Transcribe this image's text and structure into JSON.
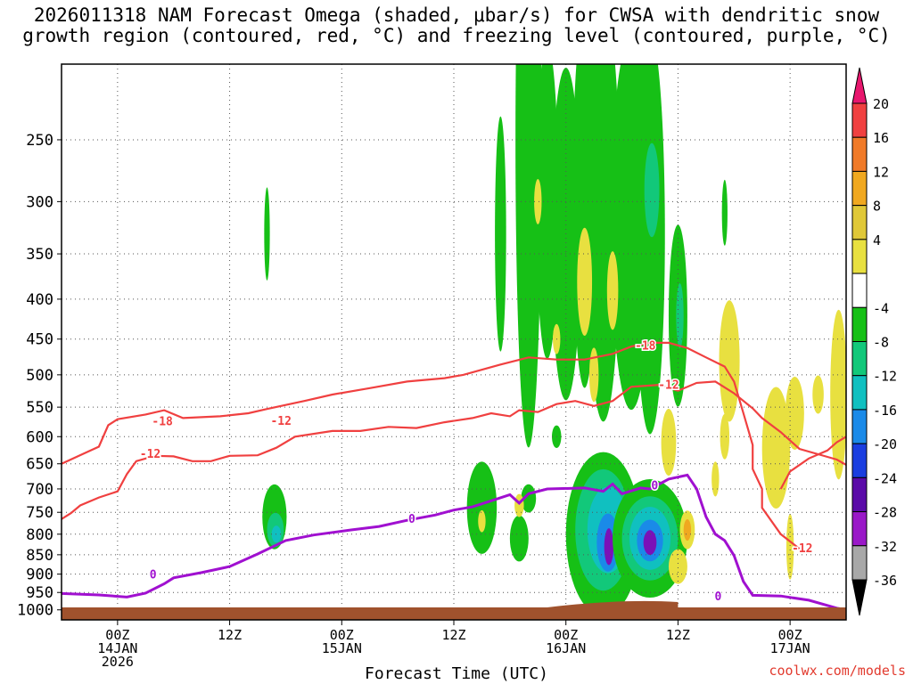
{
  "chart_data": {
    "type": "heatmap",
    "title": [
      "2026011318 NAM Forecast Omega (shaded, μbar/s) for CWSA with dendritic snow",
      "growth region (contoured, red, °C) and freezing level (contoured, purple, °C)"
    ],
    "xlabel": "Forecast Time (UTC)",
    "ylabel": "",
    "credit": "coolwx.com/models",
    "y_axis": {
      "unit": "hPa",
      "scale": "log-pressure",
      "ticks": [
        250,
        300,
        350,
        400,
        450,
        500,
        550,
        600,
        650,
        700,
        750,
        800,
        850,
        900,
        950,
        1000
      ],
      "range": [
        1030,
        200
      ]
    },
    "x_axis": {
      "unit": "hours since 2026-01-13 18Z",
      "range": [
        0,
        84
      ],
      "ticks": [
        {
          "h": 6,
          "lines": [
            "00Z",
            "14JAN",
            "2026"
          ]
        },
        {
          "h": 18,
          "lines": [
            "12Z"
          ]
        },
        {
          "h": 30,
          "lines": [
            "00Z",
            "15JAN"
          ]
        },
        {
          "h": 42,
          "lines": [
            "12Z"
          ]
        },
        {
          "h": 54,
          "lines": [
            "00Z",
            "16JAN"
          ]
        },
        {
          "h": 66,
          "lines": [
            "12Z"
          ]
        },
        {
          "h": 78,
          "lines": [
            "00Z",
            "17JAN"
          ]
        }
      ]
    },
    "grid": true,
    "colorbar": {
      "labels": [
        "20",
        "16",
        "12",
        "8",
        "4",
        "-4",
        "-8",
        "-12",
        "-16",
        "-20",
        "-24",
        "-28",
        "-32",
        "-36"
      ],
      "colors": [
        "#e8176e",
        "#f04040",
        "#f07a28",
        "#f0a820",
        "#e0c838",
        "#e8e040",
        "#ffffff",
        "#16c016",
        "#12c87a",
        "#10c0c0",
        "#1a8ae8",
        "#1a3ee0",
        "#5a0aa8",
        "#9a18c8",
        "#a8a8a8",
        "#000000"
      ]
    },
    "series": [
      {
        "name": "",
        "label": "-18",
        "color": "#f04040",
        "points": [
          [
            0,
            650
          ],
          [
            4,
            618
          ],
          [
            5,
            580
          ],
          [
            6,
            570
          ],
          [
            9,
            562
          ],
          [
            11,
            555
          ],
          [
            13,
            568
          ],
          [
            17,
            565
          ],
          [
            20,
            560
          ],
          [
            22,
            553
          ],
          [
            26,
            540
          ],
          [
            29,
            530
          ],
          [
            33,
            520
          ],
          [
            37,
            510
          ],
          [
            41,
            505
          ],
          [
            43,
            500
          ],
          [
            47,
            485
          ],
          [
            50,
            475
          ],
          [
            53,
            478
          ],
          [
            56,
            478
          ],
          [
            59,
            470
          ],
          [
            61,
            460
          ],
          [
            63,
            455
          ],
          [
            65,
            455
          ],
          [
            67,
            462
          ],
          [
            69,
            475
          ],
          [
            71,
            488
          ],
          [
            72,
            510
          ],
          [
            73,
            560
          ],
          [
            74,
            615
          ],
          [
            74,
            660
          ],
          [
            75,
            700
          ],
          [
            75,
            740
          ],
          [
            77,
            800
          ],
          [
            79,
            835
          ]
        ]
      },
      {
        "name": "",
        "label": "-12",
        "color": "#f04040",
        "points": [
          [
            0,
            765
          ],
          [
            1,
            752
          ],
          [
            2,
            735
          ],
          [
            4,
            718
          ],
          [
            6,
            705
          ],
          [
            7,
            670
          ],
          [
            8,
            645
          ],
          [
            10,
            635
          ],
          [
            12,
            636
          ],
          [
            14,
            645
          ],
          [
            16,
            645
          ],
          [
            18,
            635
          ],
          [
            21,
            634
          ],
          [
            23,
            620
          ],
          [
            25,
            600
          ],
          [
            29,
            590
          ],
          [
            32,
            590
          ],
          [
            35,
            583
          ],
          [
            38,
            585
          ],
          [
            41,
            575
          ],
          [
            44,
            568
          ],
          [
            46,
            560
          ],
          [
            48,
            565
          ],
          [
            49,
            555
          ],
          [
            51,
            558
          ],
          [
            53,
            545
          ],
          [
            55,
            540
          ],
          [
            57,
            548
          ],
          [
            59,
            540
          ],
          [
            61,
            518
          ],
          [
            64,
            515
          ],
          [
            66,
            524
          ],
          [
            68,
            512
          ],
          [
            70,
            510
          ],
          [
            72,
            528
          ],
          [
            74,
            552
          ],
          [
            75,
            568
          ],
          [
            77,
            592
          ],
          [
            79,
            622
          ],
          [
            81,
            632
          ],
          [
            83,
            642
          ],
          [
            84,
            652
          ]
        ]
      },
      {
        "name": "",
        "label": "-12",
        "color": "#f04040",
        "points": [
          [
            77,
            700
          ],
          [
            78,
            665
          ],
          [
            80,
            640
          ],
          [
            82,
            625
          ],
          [
            83,
            610
          ],
          [
            84,
            600
          ]
        ]
      },
      {
        "name": "",
        "label": "0",
        "color": "#a010d0",
        "points": [
          [
            0,
            953
          ],
          [
            4,
            957
          ],
          [
            7,
            963
          ],
          [
            9,
            952
          ],
          [
            11,
            926
          ],
          [
            12,
            910
          ],
          [
            15,
            896
          ],
          [
            18,
            880
          ],
          [
            21,
            848
          ],
          [
            24,
            815
          ],
          [
            27,
            802
          ],
          [
            31,
            790
          ],
          [
            34,
            782
          ],
          [
            37,
            768
          ],
          [
            40,
            756
          ],
          [
            42,
            745
          ],
          [
            44,
            738
          ],
          [
            46,
            725
          ],
          [
            48,
            712
          ],
          [
            49,
            730
          ],
          [
            50,
            710
          ],
          [
            52,
            700
          ],
          [
            56,
            698
          ],
          [
            58,
            705
          ],
          [
            59,
            690
          ],
          [
            60,
            710
          ],
          [
            62,
            698
          ],
          [
            63,
            700
          ],
          [
            64,
            690
          ],
          [
            65,
            680
          ],
          [
            67,
            672
          ],
          [
            68,
            700
          ],
          [
            69,
            760
          ],
          [
            70,
            800
          ],
          [
            71,
            815
          ],
          [
            72,
            852
          ],
          [
            73,
            920
          ],
          [
            74,
            958
          ],
          [
            77,
            960
          ],
          [
            80,
            972
          ],
          [
            83,
            995
          ],
          [
            84,
            1000
          ]
        ]
      }
    ],
    "fields": [
      {
        "tag": "green",
        "cx": 22,
        "cy": 330,
        "rx": 0.3,
        "dy": 90
      },
      {
        "tag": "green",
        "cx": 22.8,
        "cy": 760,
        "rx": 1.3,
        "dy": 145
      },
      {
        "tag": "teal",
        "cx": 22.9,
        "cy": 790,
        "rx": 0.9,
        "dy": 80
      },
      {
        "tag": "cyan",
        "cx": 23,
        "cy": 800,
        "rx": 0.5,
        "dy": 40
      },
      {
        "tag": "green",
        "cx": 47,
        "cy": 330,
        "rx": 0.6,
        "dy": 220
      },
      {
        "tag": "green",
        "cx": 50,
        "cy": 250,
        "rx": 1.4,
        "dy": 360
      },
      {
        "tag": "green",
        "cx": 52,
        "cy": 300,
        "rx": 1.2,
        "dy": 260
      },
      {
        "tag": "green",
        "cx": 54,
        "cy": 330,
        "rx": 1.6,
        "dy": 300
      },
      {
        "tag": "green",
        "cx": 56,
        "cy": 300,
        "rx": 1.3,
        "dy": 300
      },
      {
        "tag": "green",
        "cx": 58,
        "cy": 310,
        "rx": 1.8,
        "dy": 340
      },
      {
        "tag": "green",
        "cx": 61,
        "cy": 320,
        "rx": 2.2,
        "dy": 320
      },
      {
        "tag": "green",
        "cx": 63,
        "cy": 330,
        "rx": 1.6,
        "dy": 350
      },
      {
        "tag": "teal",
        "cx": 63.2,
        "cy": 290,
        "rx": 0.8,
        "dy": 80
      },
      {
        "tag": "green",
        "cx": 66,
        "cy": 420,
        "rx": 1.0,
        "dy": 220
      },
      {
        "tag": "teal",
        "cx": 66.2,
        "cy": 420,
        "rx": 0.4,
        "dy": 80
      },
      {
        "tag": "green",
        "cx": 71,
        "cy": 310,
        "rx": 0.3,
        "dy": 60
      },
      {
        "tag": "green",
        "cx": 45,
        "cy": 740,
        "rx": 1.6,
        "dy": 200
      },
      {
        "tag": "green",
        "cx": 49,
        "cy": 810,
        "rx": 1.0,
        "dy": 110
      },
      {
        "tag": "green",
        "cx": 50,
        "cy": 720,
        "rx": 0.8,
        "dy": 60
      },
      {
        "tag": "green",
        "cx": 53,
        "cy": 600,
        "rx": 0.5,
        "dy": 40
      },
      {
        "tag": "green",
        "cx": 58,
        "cy": 800,
        "rx": 4.0,
        "dy": 380
      },
      {
        "tag": "teal",
        "cx": 58,
        "cy": 790,
        "rx": 3.0,
        "dy": 280
      },
      {
        "tag": "cyan",
        "cx": 58.5,
        "cy": 790,
        "rx": 2.2,
        "dy": 200
      },
      {
        "tag": "blue",
        "cx": 58.5,
        "cy": 820,
        "rx": 1.2,
        "dy": 140
      },
      {
        "tag": "purple",
        "cx": 58.6,
        "cy": 830,
        "rx": 0.5,
        "dy": 90
      },
      {
        "tag": "blue",
        "cx": 61,
        "cy": 820,
        "rx": 1.2,
        "dy": 180
      },
      {
        "tag": "purple",
        "cx": 61,
        "cy": 810,
        "rx": 0.5,
        "dy": 120
      },
      {
        "tag": "green",
        "cx": 63,
        "cy": 810,
        "rx": 4.0,
        "dy": 280
      },
      {
        "tag": "teal",
        "cx": 63,
        "cy": 810,
        "rx": 3.0,
        "dy": 200
      },
      {
        "tag": "cyan",
        "cx": 63,
        "cy": 810,
        "rx": 2.2,
        "dy": 150
      },
      {
        "tag": "blue",
        "cx": 63,
        "cy": 815,
        "rx": 1.4,
        "dy": 100
      },
      {
        "tag": "purple",
        "cx": 63,
        "cy": 820,
        "rx": 0.7,
        "dy": 60
      },
      {
        "tag": "yellow",
        "cx": 45,
        "cy": 770,
        "rx": 0.4,
        "dy": 50
      },
      {
        "tag": "yellow",
        "cx": 49,
        "cy": 735,
        "rx": 0.5,
        "dy": 50
      },
      {
        "tag": "yellow",
        "cx": 51,
        "cy": 300,
        "rx": 0.4,
        "dy": 40
      },
      {
        "tag": "yellow",
        "cx": 53,
        "cy": 450,
        "rx": 0.4,
        "dy": 40
      },
      {
        "tag": "yellow",
        "cx": 56,
        "cy": 380,
        "rx": 0.8,
        "dy": 120
      },
      {
        "tag": "yellow",
        "cx": 57,
        "cy": 500,
        "rx": 0.5,
        "dy": 80
      },
      {
        "tag": "yellow",
        "cx": 59,
        "cy": 390,
        "rx": 0.6,
        "dy": 90
      },
      {
        "tag": "yellow",
        "cx": 65,
        "cy": 610,
        "rx": 0.8,
        "dy": 120
      },
      {
        "tag": "yellow",
        "cx": 66,
        "cy": 880,
        "rx": 1.0,
        "dy": 90
      },
      {
        "tag": "yellow",
        "cx": 67,
        "cy": 790,
        "rx": 0.8,
        "dy": 90
      },
      {
        "tag": "orange",
        "cx": 67,
        "cy": 790,
        "rx": 0.4,
        "dy": 50
      },
      {
        "tag": "yellow",
        "cx": 70,
        "cy": 680,
        "rx": 0.4,
        "dy": 70
      },
      {
        "tag": "yellow",
        "cx": 71.5,
        "cy": 480,
        "rx": 1.1,
        "dy": 170
      },
      {
        "tag": "yellow",
        "cx": 71,
        "cy": 600,
        "rx": 0.5,
        "dy": 80
      },
      {
        "tag": "yellow",
        "cx": 76.5,
        "cy": 620,
        "rx": 1.5,
        "dy": 220
      },
      {
        "tag": "yellow",
        "cx": 78.5,
        "cy": 560,
        "rx": 1.0,
        "dy": 120
      },
      {
        "tag": "yellow",
        "cx": 78,
        "cy": 830,
        "rx": 0.4,
        "dy": 160
      },
      {
        "tag": "yellow",
        "cx": 81,
        "cy": 530,
        "rx": 0.6,
        "dy": 60
      },
      {
        "tag": "yellow",
        "cx": 83.2,
        "cy": 530,
        "rx": 0.9,
        "dy": 260
      }
    ]
  }
}
